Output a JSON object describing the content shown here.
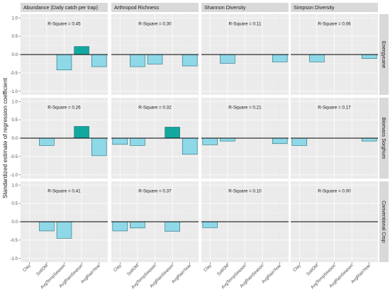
{
  "chart_data": {
    "type": "bar",
    "ylabel": "Standardized estimate of regression coefficient",
    "ylim": [
      -1.1,
      1.1
    ],
    "yticks": [
      -1.0,
      -0.5,
      0.0,
      0.5,
      1.0
    ],
    "ytick_labels": [
      "-1.0",
      "-0.5",
      "0.0",
      "0.5",
      "1.0"
    ],
    "categories": [
      "Clay",
      "SoilOM",
      "AvgTempSeason",
      "AvgRainSeason",
      "AvgRainYear"
    ],
    "columns": [
      "Abundance (Daily catch per trap)",
      "Arthropod Richness",
      "Shannon Diversity",
      "Simpson Diversity"
    ],
    "rows": [
      "Energycane",
      "Biomass Sorghum",
      "Conventional Crop"
    ],
    "colors": {
      "positive": "#13a89e",
      "negative": "#8ed8e8",
      "bar_stroke": "#1f6f78",
      "panel_bg": "#ebebeb",
      "strip_bg": "#d9d9d9"
    },
    "panels": [
      {
        "row": "Energycane",
        "column": "Abundance (Daily catch per trap)",
        "rsquare": "R-Square = 0.45",
        "values": [
          0,
          0,
          -0.42,
          0.22,
          -0.33
        ]
      },
      {
        "row": "Energycane",
        "column": "Arthropod Richness",
        "rsquare": "R-Square = 0.30",
        "values": [
          0,
          -0.33,
          -0.26,
          0,
          -0.31
        ]
      },
      {
        "row": "Energycane",
        "column": "Shannon Diversity",
        "rsquare": "R-Square = 0.11",
        "values": [
          0,
          -0.24,
          0,
          0,
          -0.2
        ]
      },
      {
        "row": "Energycane",
        "column": "Simpson Diversity",
        "rsquare": "R-Square = 0.06",
        "values": [
          0,
          -0.2,
          0,
          0,
          -0.11
        ]
      },
      {
        "row": "Biomass Sorghum",
        "column": "Abundance (Daily catch per trap)",
        "rsquare": "R-Square = 0.26",
        "values": [
          0,
          -0.2,
          0,
          0.32,
          -0.48
        ]
      },
      {
        "row": "Biomass Sorghum",
        "column": "Arthropod Richness",
        "rsquare": "R-Square = 0.32",
        "values": [
          -0.17,
          -0.2,
          0,
          0.3,
          -0.44
        ]
      },
      {
        "row": "Biomass Sorghum",
        "column": "Shannon Diversity",
        "rsquare": "R-Square = 0.21",
        "values": [
          -0.18,
          -0.08,
          0,
          0,
          -0.15
        ]
      },
      {
        "row": "Biomass Sorghum",
        "column": "Simpson Diversity",
        "rsquare": "R-Square = 0.17",
        "values": [
          -0.2,
          0,
          0,
          0,
          -0.08
        ]
      },
      {
        "row": "Conventional Crop",
        "column": "Abundance (Daily catch per trap)",
        "rsquare": "R-Square = 0.41",
        "values": [
          0,
          -0.25,
          -0.45,
          0,
          0
        ]
      },
      {
        "row": "Conventional Crop",
        "column": "Arthropod Richness",
        "rsquare": "R-Square = 0.37",
        "values": [
          -0.25,
          -0.17,
          0,
          -0.26,
          0
        ]
      },
      {
        "row": "Conventional Crop",
        "column": "Shannon Diversity",
        "rsquare": "R-Square = 0.10",
        "values": [
          -0.16,
          0,
          0,
          0,
          0
        ]
      },
      {
        "row": "Conventional Crop",
        "column": "Simpson Diversity",
        "rsquare": "R-Square = 0.00",
        "values": [
          0,
          0,
          0,
          0,
          0
        ]
      }
    ]
  }
}
